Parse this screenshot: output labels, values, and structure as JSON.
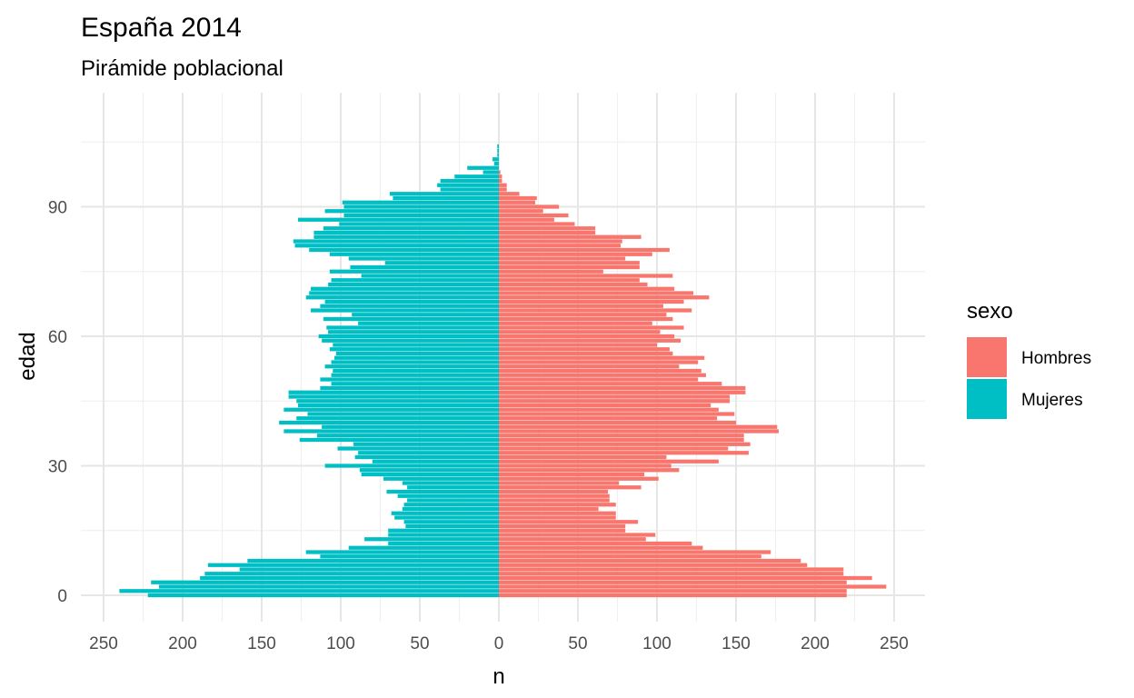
{
  "title": "España 2014",
  "subtitle": "Pirámide poblacional",
  "chart_data": {
    "type": "bar",
    "orientation": "horizontal",
    "title": "España 2014",
    "subtitle": "Pirámide poblacional",
    "xlabel": "n",
    "ylabel": "edad",
    "xlim": [
      -250,
      250
    ],
    "ylim": [
      0,
      106
    ],
    "x_ticks": [
      {
        "value": -250,
        "label": "250"
      },
      {
        "value": -200,
        "label": "200"
      },
      {
        "value": -150,
        "label": "150"
      },
      {
        "value": -100,
        "label": "100"
      },
      {
        "value": -50,
        "label": "50"
      },
      {
        "value": 0,
        "label": "0"
      },
      {
        "value": 50,
        "label": "50"
      },
      {
        "value": 100,
        "label": "100"
      },
      {
        "value": 150,
        "label": "150"
      },
      {
        "value": 200,
        "label": "200"
      },
      {
        "value": 250,
        "label": "250"
      }
    ],
    "y_ticks": [
      {
        "value": 0,
        "label": "0"
      },
      {
        "value": 30,
        "label": "30"
      },
      {
        "value": 60,
        "label": "60"
      },
      {
        "value": 90,
        "label": "90"
      }
    ],
    "grid": true,
    "legend": {
      "title": "sexo",
      "position": "right"
    },
    "ages": [
      0,
      1,
      2,
      3,
      4,
      5,
      6,
      7,
      8,
      9,
      10,
      11,
      12,
      13,
      14,
      15,
      16,
      17,
      18,
      19,
      20,
      21,
      22,
      23,
      24,
      25,
      26,
      27,
      28,
      29,
      30,
      31,
      32,
      33,
      34,
      35,
      36,
      37,
      38,
      39,
      40,
      41,
      42,
      43,
      44,
      45,
      46,
      47,
      48,
      49,
      50,
      51,
      52,
      53,
      54,
      55,
      56,
      57,
      58,
      59,
      60,
      61,
      62,
      63,
      64,
      65,
      66,
      67,
      68,
      69,
      70,
      71,
      72,
      73,
      74,
      75,
      76,
      77,
      78,
      79,
      80,
      81,
      82,
      83,
      84,
      85,
      86,
      87,
      88,
      89,
      90,
      91,
      92,
      93,
      94,
      95,
      96,
      97,
      98,
      99,
      100,
      101,
      102,
      103,
      104,
      105,
      106
    ],
    "series": [
      {
        "name": "Hombres",
        "color": "#F8766D",
        "side": "right",
        "values": [
          220,
          220,
          245,
          220,
          236,
          218,
          218,
          195,
          191,
          166,
          172,
          129,
          122,
          93,
          99,
          80,
          80,
          88,
          74,
          74,
          63,
          74,
          70,
          70,
          69,
          90,
          76,
          101,
          92,
          114,
          109,
          139,
          106,
          158,
          145,
          159,
          155,
          155,
          177,
          176,
          150,
          138,
          149,
          139,
          134,
          146,
          146,
          156,
          156,
          141,
          126,
          131,
          128,
          114,
          126,
          130,
          110,
          108,
          100,
          115,
          111,
          102,
          117,
          97,
          110,
          106,
          122,
          104,
          117,
          133,
          123,
          111,
          94,
          89,
          110,
          66,
          89,
          89,
          80,
          97,
          108,
          77,
          78,
          90,
          61,
          61,
          48,
          35,
          44,
          28,
          38,
          23,
          24,
          13,
          5,
          5,
          2,
          2,
          1,
          0,
          0,
          0,
          0,
          0,
          0,
          0,
          0
        ]
      },
      {
        "name": "Mujeres",
        "color": "#00BFC4",
        "side": "left",
        "values": [
          222,
          240,
          215,
          220,
          189,
          186,
          164,
          184,
          159,
          113,
          122,
          95,
          70,
          85,
          70,
          70,
          59,
          60,
          66,
          68,
          61,
          60,
          58,
          64,
          71,
          58,
          61,
          73,
          87,
          88,
          110,
          80,
          91,
          89,
          102,
          92,
          126,
          115,
          136,
          112,
          139,
          128,
          121,
          136,
          127,
          128,
          133,
          133,
          113,
          106,
          113,
          106,
          105,
          110,
          106,
          104,
          103,
          107,
          105,
          112,
          114,
          108,
          109,
          89,
          111,
          93,
          119,
          113,
          110,
          122,
          120,
          119,
          108,
          106,
          87,
          107,
          94,
          72,
          95,
          107,
          120,
          129,
          130,
          117,
          117,
          111,
          101,
          127,
          98,
          110,
          98,
          99,
          67,
          69,
          37,
          39,
          37,
          28,
          10,
          20,
          3,
          4,
          1,
          1,
          1,
          0,
          0
        ]
      }
    ]
  }
}
